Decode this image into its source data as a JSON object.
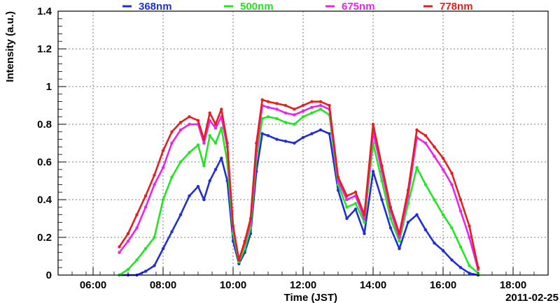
{
  "chart_data": {
    "type": "scatter",
    "xlabel": "Time (JST)",
    "ylabel": "Intensity (a.u.)",
    "date_label": "2011-02-25",
    "xlim": [
      "05:00",
      "19:00"
    ],
    "ylim": [
      0,
      1.4
    ],
    "x_ticks": [
      "06:00",
      "08:00",
      "10:00",
      "12:00",
      "14:00",
      "16:00",
      "18:00"
    ],
    "y_ticks": [
      "0",
      "0.2",
      "0.4",
      "0.6",
      "0.8",
      "1",
      "1.2",
      "1.4"
    ],
    "grid": true,
    "legend_position": "top",
    "x": [
      "06:45",
      "07:00",
      "07:15",
      "07:30",
      "07:45",
      "08:00",
      "08:15",
      "08:30",
      "08:45",
      "09:00",
      "09:10",
      "09:20",
      "09:30",
      "09:40",
      "09:50",
      "10:00",
      "10:10",
      "10:20",
      "10:30",
      "10:40",
      "10:50",
      "11:00",
      "11:15",
      "11:30",
      "11:45",
      "12:00",
      "12:15",
      "12:30",
      "12:45",
      "13:00",
      "13:15",
      "13:30",
      "13:45",
      "14:00",
      "14:15",
      "14:30",
      "14:45",
      "15:00",
      "15:15",
      "15:30",
      "15:45",
      "16:00",
      "16:15",
      "16:30",
      "16:45",
      "17:00"
    ],
    "series": [
      {
        "name": "368nm",
        "color": "#1f2fd8",
        "values": [
          0.0,
          0.0,
          0.0,
          0.02,
          0.05,
          0.14,
          0.23,
          0.32,
          0.42,
          0.47,
          0.4,
          0.5,
          0.56,
          0.62,
          0.5,
          0.18,
          0.06,
          0.12,
          0.22,
          0.55,
          0.75,
          0.74,
          0.72,
          0.71,
          0.7,
          0.73,
          0.75,
          0.77,
          0.75,
          0.45,
          0.3,
          0.35,
          0.22,
          0.55,
          0.4,
          0.25,
          0.14,
          0.28,
          0.32,
          0.24,
          0.17,
          0.13,
          0.08,
          0.04,
          0.01,
          0.0
        ]
      },
      {
        "name": "500nm",
        "color": "#22e622",
        "values": [
          0.0,
          0.03,
          0.08,
          0.14,
          0.2,
          0.4,
          0.52,
          0.6,
          0.65,
          0.69,
          0.58,
          0.74,
          0.7,
          0.78,
          0.6,
          0.22,
          0.07,
          0.14,
          0.25,
          0.62,
          0.83,
          0.84,
          0.83,
          0.81,
          0.8,
          0.84,
          0.86,
          0.88,
          0.85,
          0.48,
          0.36,
          0.38,
          0.28,
          0.7,
          0.5,
          0.3,
          0.18,
          0.38,
          0.57,
          0.48,
          0.4,
          0.32,
          0.25,
          0.15,
          0.05,
          0.01
        ]
      },
      {
        "name": "675nm",
        "color": "#ee22ee",
        "values": [
          0.12,
          0.18,
          0.25,
          0.36,
          0.48,
          0.57,
          0.7,
          0.77,
          0.8,
          0.8,
          0.7,
          0.82,
          0.78,
          0.84,
          0.68,
          0.25,
          0.08,
          0.17,
          0.28,
          0.66,
          0.9,
          0.89,
          0.88,
          0.86,
          0.85,
          0.87,
          0.89,
          0.9,
          0.88,
          0.5,
          0.4,
          0.42,
          0.3,
          0.76,
          0.55,
          0.34,
          0.2,
          0.42,
          0.73,
          0.7,
          0.63,
          0.56,
          0.48,
          0.34,
          0.2,
          0.03
        ]
      },
      {
        "name": "778nm",
        "color": "#e61e1e",
        "values": [
          0.15,
          0.22,
          0.32,
          0.42,
          0.53,
          0.66,
          0.76,
          0.81,
          0.84,
          0.82,
          0.72,
          0.86,
          0.8,
          0.88,
          0.7,
          0.26,
          0.08,
          0.18,
          0.3,
          0.7,
          0.93,
          0.92,
          0.91,
          0.9,
          0.88,
          0.9,
          0.92,
          0.92,
          0.9,
          0.52,
          0.42,
          0.44,
          0.32,
          0.8,
          0.58,
          0.36,
          0.22,
          0.45,
          0.77,
          0.74,
          0.68,
          0.62,
          0.54,
          0.4,
          0.26,
          0.04
        ]
      }
    ]
  }
}
